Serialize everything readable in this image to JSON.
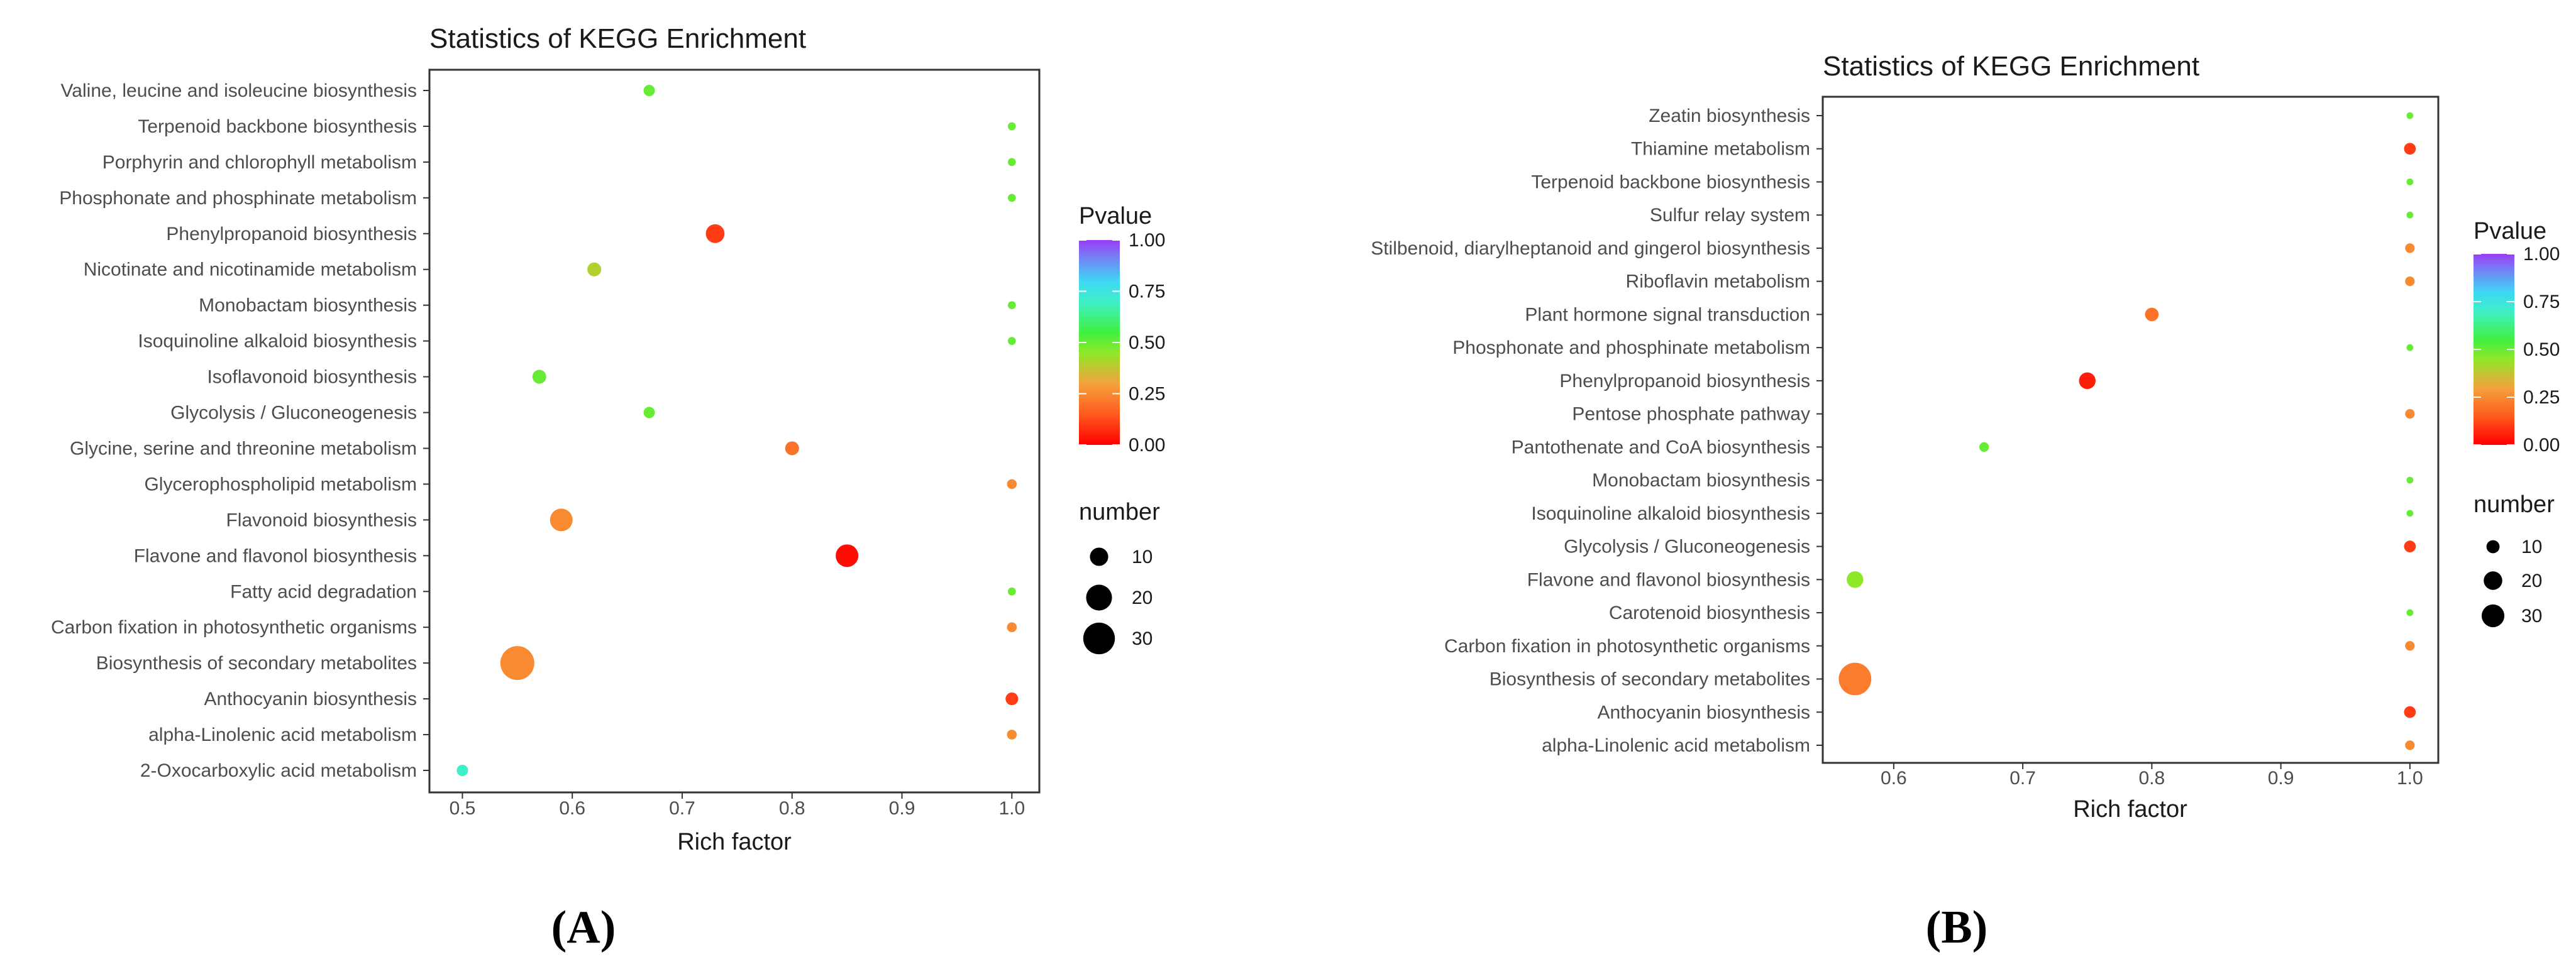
{
  "chart_data": [
    {
      "type": "scatter",
      "panel_label": "(A)",
      "title": "Statistics of KEGG Enrichment",
      "xlabel": "Rich factor",
      "ylabel": "",
      "xlim": [
        0.47,
        1.025
      ],
      "xticks": [
        0.5,
        0.6,
        0.7,
        0.8,
        0.9,
        1.0
      ],
      "xtick_labels": [
        "0.5",
        "0.6",
        "0.7",
        "0.8",
        "0.9",
        "1.0"
      ],
      "color_legend": {
        "title": "Pvalue",
        "ticks": [
          "1.00",
          "0.75",
          "0.50",
          "0.25",
          "0.00"
        ]
      },
      "size_legend": {
        "title": "number",
        "values": [
          10,
          20,
          30
        ],
        "labels": [
          "10",
          "20",
          "30"
        ]
      },
      "points": [
        {
          "pathway": "Valine, leucine and isoleucine biosynthesis",
          "rich_factor": 0.67,
          "pvalue": 0.5,
          "number": 4
        },
        {
          "pathway": "Terpenoid backbone biosynthesis",
          "rich_factor": 1.0,
          "pvalue": 0.5,
          "number": 2
        },
        {
          "pathway": "Porphyrin and chlorophyll metabolism",
          "rich_factor": 1.0,
          "pvalue": 0.5,
          "number": 2
        },
        {
          "pathway": "Phosphonate and phosphinate metabolism",
          "rich_factor": 1.0,
          "pvalue": 0.5,
          "number": 2
        },
        {
          "pathway": "Phenylpropanoid biosynthesis",
          "rich_factor": 0.73,
          "pvalue": 0.1,
          "number": 11
        },
        {
          "pathway": "Nicotinate and nicotinamide metabolism",
          "rich_factor": 0.62,
          "pvalue": 0.4,
          "number": 6
        },
        {
          "pathway": "Monobactam biosynthesis",
          "rich_factor": 1.0,
          "pvalue": 0.5,
          "number": 2
        },
        {
          "pathway": "Isoquinoline alkaloid biosynthesis",
          "rich_factor": 1.0,
          "pvalue": 0.5,
          "number": 2
        },
        {
          "pathway": "Isoflavonoid biosynthesis",
          "rich_factor": 0.57,
          "pvalue": 0.5,
          "number": 6
        },
        {
          "pathway": "Glycolysis / Gluconeogenesis",
          "rich_factor": 0.67,
          "pvalue": 0.5,
          "number": 4
        },
        {
          "pathway": "Glycine, serine and threonine metabolism",
          "rich_factor": 0.8,
          "pvalue": 0.2,
          "number": 6
        },
        {
          "pathway": "Glycerophospholipid metabolism",
          "rich_factor": 1.0,
          "pvalue": 0.25,
          "number": 3
        },
        {
          "pathway": "Flavonoid biosynthesis",
          "rich_factor": 0.59,
          "pvalue": 0.25,
          "number": 16
        },
        {
          "pathway": "Flavone and flavonol biosynthesis",
          "rich_factor": 0.85,
          "pvalue": 0.02,
          "number": 16
        },
        {
          "pathway": "Fatty acid degradation",
          "rich_factor": 1.0,
          "pvalue": 0.5,
          "number": 2
        },
        {
          "pathway": "Carbon fixation in photosynthetic organisms",
          "rich_factor": 1.0,
          "pvalue": 0.25,
          "number": 3
        },
        {
          "pathway": "Biosynthesis of secondary metabolites",
          "rich_factor": 0.55,
          "pvalue": 0.25,
          "number": 36
        },
        {
          "pathway": "Anthocyanin biosynthesis",
          "rich_factor": 1.0,
          "pvalue": 0.1,
          "number": 5
        },
        {
          "pathway": "alpha-Linolenic acid metabolism",
          "rich_factor": 1.0,
          "pvalue": 0.25,
          "number": 3
        },
        {
          "pathway": "2-Oxocarboxylic acid metabolism",
          "rich_factor": 0.5,
          "pvalue": 0.7,
          "number": 4
        }
      ]
    },
    {
      "type": "scatter",
      "panel_label": "(B)",
      "title": "Statistics of KEGG Enrichment",
      "xlabel": "Rich factor",
      "ylabel": "",
      "xlim": [
        0.545,
        1.022
      ],
      "xticks": [
        0.6,
        0.7,
        0.8,
        0.9,
        1.0
      ],
      "xtick_labels": [
        "0.6",
        "0.7",
        "0.8",
        "0.9",
        "1.0"
      ],
      "color_legend": {
        "title": "Pvalue",
        "ticks": [
          "1.00",
          "0.75",
          "0.50",
          "0.25",
          "0.00"
        ]
      },
      "size_legend": {
        "title": "number",
        "values": [
          10,
          20,
          30
        ],
        "labels": [
          "10",
          "20",
          "30"
        ]
      },
      "points": [
        {
          "pathway": "Zeatin biosynthesis",
          "rich_factor": 1.0,
          "pvalue": 0.5,
          "number": 1
        },
        {
          "pathway": "Thiamine metabolism",
          "rich_factor": 1.0,
          "pvalue": 0.1,
          "number": 3
        },
        {
          "pathway": "Terpenoid backbone biosynthesis",
          "rich_factor": 1.0,
          "pvalue": 0.5,
          "number": 1
        },
        {
          "pathway": "Sulfur relay system",
          "rich_factor": 1.0,
          "pvalue": 0.5,
          "number": 1
        },
        {
          "pathway": "Stilbenoid, diarylheptanoid and gingerol biosynthesis",
          "rich_factor": 1.0,
          "pvalue": 0.25,
          "number": 2
        },
        {
          "pathway": "Riboflavin metabolism",
          "rich_factor": 1.0,
          "pvalue": 0.25,
          "number": 2
        },
        {
          "pathway": "Plant hormone signal transduction",
          "rich_factor": 0.8,
          "pvalue": 0.2,
          "number": 4
        },
        {
          "pathway": "Phosphonate and phosphinate metabolism",
          "rich_factor": 1.0,
          "pvalue": 0.5,
          "number": 1
        },
        {
          "pathway": "Phenylpropanoid biosynthesis",
          "rich_factor": 0.75,
          "pvalue": 0.05,
          "number": 6
        },
        {
          "pathway": "Pentose phosphate pathway",
          "rich_factor": 1.0,
          "pvalue": 0.25,
          "number": 2
        },
        {
          "pathway": "Pantothenate and CoA biosynthesis",
          "rich_factor": 0.67,
          "pvalue": 0.5,
          "number": 2
        },
        {
          "pathway": "Monobactam biosynthesis",
          "rich_factor": 1.0,
          "pvalue": 0.5,
          "number": 1
        },
        {
          "pathway": "Isoquinoline alkaloid biosynthesis",
          "rich_factor": 1.0,
          "pvalue": 0.5,
          "number": 1
        },
        {
          "pathway": "Glycolysis / Gluconeogenesis",
          "rich_factor": 1.0,
          "pvalue": 0.1,
          "number": 3
        },
        {
          "pathway": "Flavone and flavonol biosynthesis",
          "rich_factor": 0.57,
          "pvalue": 0.45,
          "number": 6
        },
        {
          "pathway": "Carotenoid biosynthesis",
          "rich_factor": 1.0,
          "pvalue": 0.5,
          "number": 1
        },
        {
          "pathway": "Carbon fixation in photosynthetic organisms",
          "rich_factor": 1.0,
          "pvalue": 0.25,
          "number": 2
        },
        {
          "pathway": "Biosynthesis of secondary metabolites",
          "rich_factor": 0.57,
          "pvalue": 0.22,
          "number": 23
        },
        {
          "pathway": "Anthocyanin biosynthesis",
          "rich_factor": 1.0,
          "pvalue": 0.1,
          "number": 3
        },
        {
          "pathway": "alpha-Linolenic acid metabolism",
          "rich_factor": 1.0,
          "pvalue": 0.25,
          "number": 2
        }
      ]
    }
  ]
}
